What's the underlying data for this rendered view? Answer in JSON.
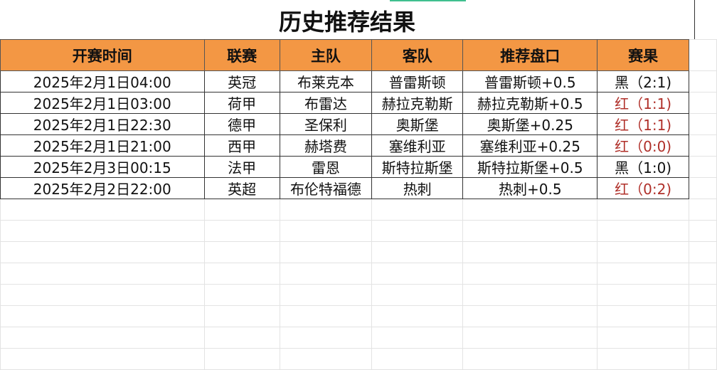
{
  "title": "历史推荐结果",
  "headers": [
    "开赛时间",
    "联赛",
    "主队",
    "客队",
    "推荐盘口",
    "赛果"
  ],
  "rows": [
    {
      "time": "2025年2月1日04:00",
      "league": "英冠",
      "home": "布莱克本",
      "away": "普雷斯顿",
      "pick": "普雷斯顿+0.5",
      "result": "黑（2:1)",
      "status": "black"
    },
    {
      "time": "2025年2月1日03:00",
      "league": "荷甲",
      "home": "布雷达",
      "away": "赫拉克勒斯",
      "pick": "赫拉克勒斯+0.5",
      "result": "红（1:1)",
      "status": "red"
    },
    {
      "time": "2025年2月1日22:30",
      "league": "德甲",
      "home": "圣保利",
      "away": "奥斯堡",
      "pick": "奥斯堡+0.25",
      "result": "红（1:1)",
      "status": "red"
    },
    {
      "time": "2025年2月1日21:00",
      "league": "西甲",
      "home": "赫塔费",
      "away": "塞维利亚",
      "pick": "塞维利亚+0.25",
      "result": "红（0:0)",
      "status": "red"
    },
    {
      "time": "2025年2月3日00:15",
      "league": "法甲",
      "home": "雷恩",
      "away": "斯特拉斯堡",
      "pick": "斯特拉斯堡+0.5",
      "result": "黑（1:0)",
      "status": "black"
    },
    {
      "time": "2025年2月2日22:00",
      "league": "英超",
      "home": "布伦特福德",
      "away": "热刺",
      "pick": "热刺+0.5",
      "result": "红（0:2)",
      "status": "red"
    }
  ],
  "colors": {
    "header": "#f39744",
    "red": "#b0302a",
    "black": "#111111"
  }
}
